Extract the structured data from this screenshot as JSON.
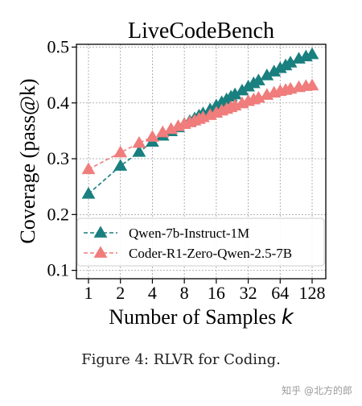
{
  "chart_data": {
    "type": "line",
    "title": "LiveCodeBench",
    "xlabel": "Number of Samples k",
    "xlabel_main": "Number of Samples ",
    "xlabel_var": "k",
    "ylabel": "Coverage (pass@k)",
    "x_scale": "log2",
    "xlim": [
      1,
      128
    ],
    "ylim": [
      0.085,
      0.505
    ],
    "x_ticks": [
      1,
      2,
      4,
      8,
      16,
      32,
      64,
      128
    ],
    "x_tick_labels": [
      "1",
      "2",
      "4",
      "8",
      "16",
      "32",
      "64",
      "128"
    ],
    "y_ticks": [
      0.1,
      0.2,
      0.3,
      0.4,
      0.5
    ],
    "y_tick_labels": [
      "0.1",
      "0.2",
      "0.3",
      "0.4",
      "0.5"
    ],
    "grid": true,
    "legend_position": "lower-right",
    "x": [
      1,
      2,
      3,
      4,
      5,
      6,
      7,
      8,
      9,
      10,
      11,
      12,
      14,
      16,
      18,
      20,
      22,
      24,
      28,
      32,
      36,
      40,
      48,
      56,
      64,
      72,
      80,
      96,
      112,
      128
    ],
    "series": [
      {
        "name": "Qwen-7b-Instruct-1M",
        "color": "#1a7f7f",
        "values": [
          0.237,
          0.287,
          0.312,
          0.33,
          0.341,
          0.349,
          0.356,
          0.362,
          0.367,
          0.372,
          0.377,
          0.381,
          0.388,
          0.395,
          0.401,
          0.406,
          0.411,
          0.415,
          0.422,
          0.429,
          0.435,
          0.44,
          0.449,
          0.456,
          0.462,
          0.467,
          0.472,
          0.479,
          0.483,
          0.487
        ]
      },
      {
        "name": "Coder-R1-Zero-Qwen-2.5-7B",
        "color": "#f07c7c",
        "values": [
          0.281,
          0.311,
          0.328,
          0.339,
          0.347,
          0.353,
          0.358,
          0.362,
          0.365,
          0.368,
          0.371,
          0.374,
          0.378,
          0.382,
          0.386,
          0.389,
          0.392,
          0.395,
          0.399,
          0.403,
          0.406,
          0.409,
          0.414,
          0.418,
          0.421,
          0.423,
          0.425,
          0.428,
          0.43,
          0.431
        ]
      }
    ]
  },
  "caption": "Figure 4: RLVR for Coding.",
  "watermark": "知乎 @北方的郎"
}
